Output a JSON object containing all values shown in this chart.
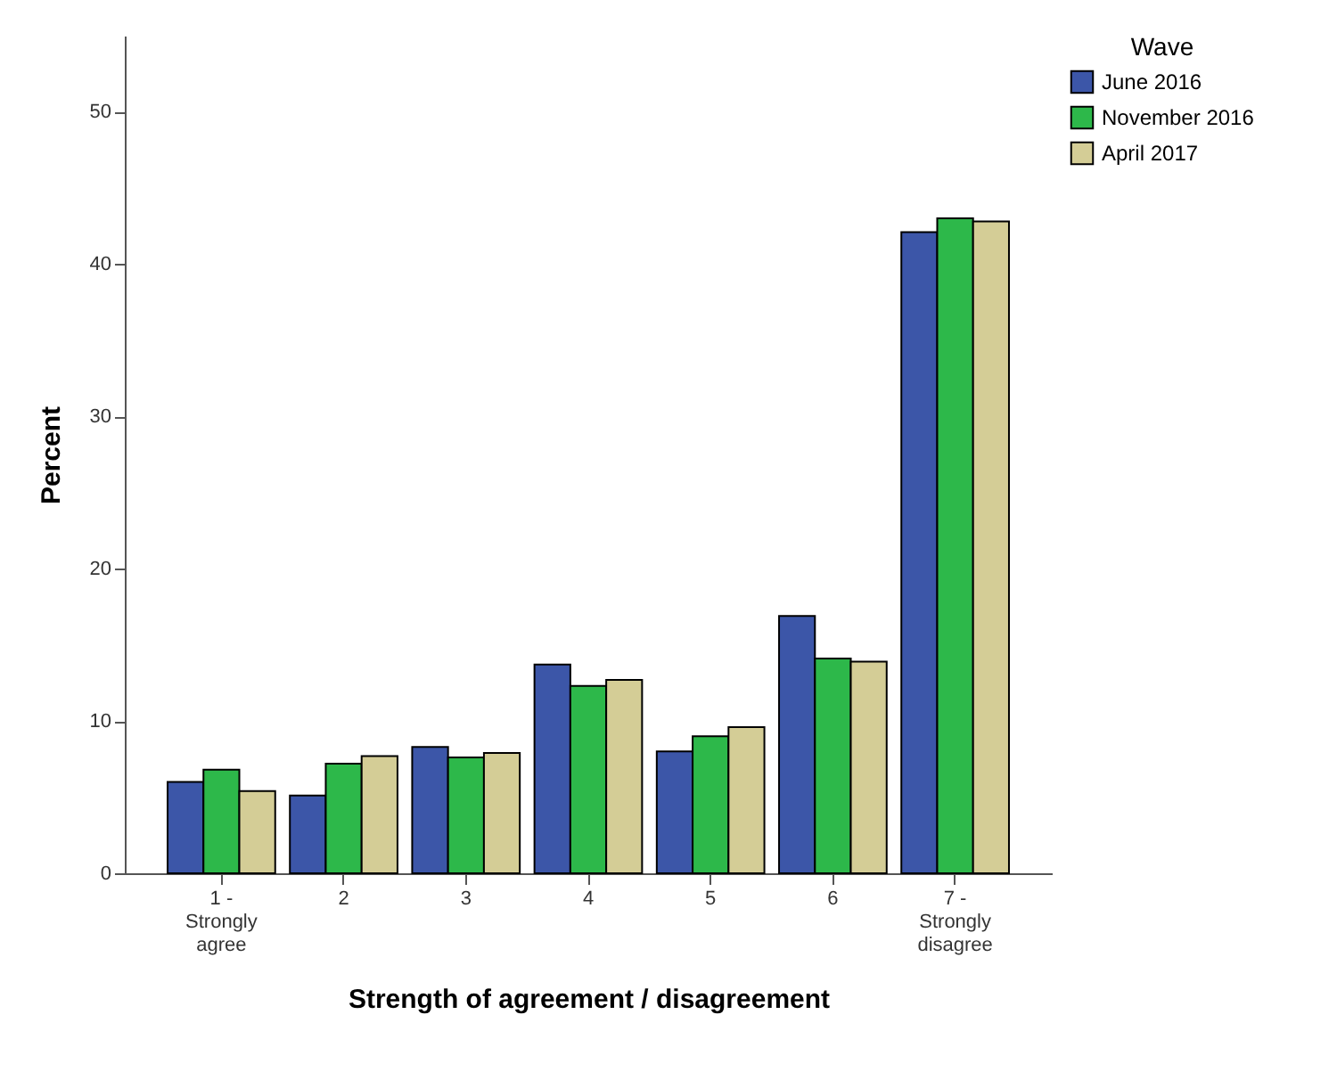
{
  "chart_data": {
    "type": "bar",
    "xlabel": "Strength of agreement / disagreement",
    "ylabel": "Percent",
    "legend_title": "Wave",
    "categories": [
      "1 - Strongly agree",
      "2",
      "3",
      "4",
      "5",
      "6",
      "7 - Strongly disagree"
    ],
    "series": [
      {
        "name": "June 2016",
        "color": "#3c56a8",
        "values": [
          6.0,
          5.1,
          8.3,
          13.7,
          8.0,
          16.9,
          42.1
        ]
      },
      {
        "name": "November 2016",
        "color": "#2db84a",
        "values": [
          6.8,
          7.2,
          7.6,
          12.3,
          9.0,
          14.1,
          43.0
        ]
      },
      {
        "name": "April 2017",
        "color": "#d4cd96",
        "values": [
          5.4,
          7.7,
          7.9,
          12.7,
          9.6,
          13.9,
          42.8
        ]
      }
    ],
    "ylim": [
      0,
      55
    ],
    "yticks": [
      0,
      10,
      20,
      30,
      40,
      50
    ],
    "grid": false,
    "legend": "top right"
  }
}
